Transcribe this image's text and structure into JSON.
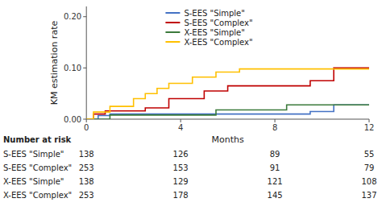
{
  "chart_data": {
    "type": "line",
    "x_label": "Months",
    "y_label": "KM estimation rate",
    "xlim": [
      0,
      12
    ],
    "ylim": [
      0,
      0.22
    ],
    "xticks": [
      0,
      4,
      8,
      12
    ],
    "yticks": [
      {
        "value": 0.0,
        "label": "0.00"
      },
      {
        "value": 0.1,
        "label": "0.10"
      },
      {
        "value": 0.2,
        "label": "0.20"
      }
    ],
    "grid": false,
    "legend": "upper left",
    "series": [
      {
        "name": "S-EES \"Simple\"",
        "color": "#4472C4",
        "x": [
          0,
          0.5,
          0.5,
          1.0,
          1.0,
          9.5,
          9.5,
          10.5,
          10.5,
          12
        ],
        "values": [
          0,
          0,
          0.007,
          0.007,
          0.01,
          0.01,
          0.015,
          0.015,
          0.028,
          0.028
        ]
      },
      {
        "name": "S-EES \"Complex\"",
        "color": "#C00000",
        "x": [
          0,
          0.3,
          0.3,
          0.8,
          0.8,
          2.5,
          2.5,
          3.5,
          3.5,
          5.0,
          5.0,
          6.0,
          6.0,
          9.5,
          9.5,
          10.5,
          10.5,
          12
        ],
        "values": [
          0,
          0,
          0.01,
          0.01,
          0.016,
          0.016,
          0.022,
          0.022,
          0.04,
          0.04,
          0.055,
          0.055,
          0.065,
          0.065,
          0.075,
          0.075,
          0.1,
          0.1
        ]
      },
      {
        "name": "X-EES \"Simple\"",
        "color": "#3B7A3B",
        "x": [
          0,
          1.0,
          1.0,
          5.5,
          5.5,
          8.5,
          8.5,
          12
        ],
        "values": [
          0,
          0,
          0.008,
          0.008,
          0.018,
          0.018,
          0.028,
          0.028
        ]
      },
      {
        "name": "X-EES \"Complex\"",
        "color": "#FFC000",
        "x": [
          0,
          0.3,
          0.3,
          1.0,
          1.0,
          2.0,
          2.0,
          2.5,
          2.5,
          3.0,
          3.0,
          3.5,
          3.5,
          4.5,
          4.5,
          5.5,
          5.5,
          6.5,
          6.5,
          12
        ],
        "values": [
          0,
          0,
          0.014,
          0.014,
          0.025,
          0.025,
          0.04,
          0.04,
          0.05,
          0.05,
          0.06,
          0.06,
          0.07,
          0.07,
          0.082,
          0.082,
          0.092,
          0.092,
          0.098,
          0.098
        ]
      }
    ],
    "risk_table": {
      "header": "Number at risk",
      "x": [
        0,
        4,
        8,
        12
      ],
      "rows": [
        {
          "name": "S-EES \"Simple\"",
          "values": [
            138,
            126,
            89,
            55
          ]
        },
        {
          "name": "S-EES \"Complex\"",
          "values": [
            253,
            153,
            91,
            79
          ]
        },
        {
          "name": "X-EES \"Simple\"",
          "values": [
            138,
            129,
            121,
            108
          ]
        },
        {
          "name": "X-EES \"Complex\"",
          "values": [
            253,
            178,
            145,
            137
          ]
        }
      ]
    }
  }
}
